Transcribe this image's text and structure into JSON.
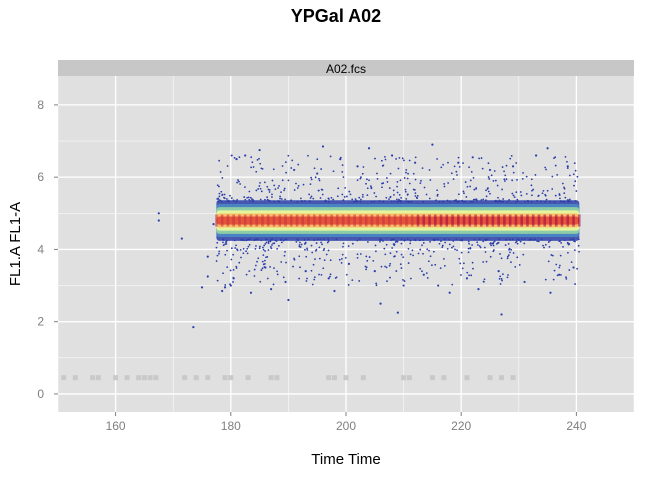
{
  "chart_data": {
    "type": "scatter",
    "title": "YPGal A02",
    "panel_label": "A02.fcs",
    "xlabel": "Time Time",
    "ylabel": "FL1.A FL1-A",
    "xlim": [
      150,
      250
    ],
    "ylim": [
      -0.5,
      8.8
    ],
    "x_ticks": [
      160,
      180,
      200,
      220,
      240
    ],
    "y_ticks": [
      0,
      2,
      4,
      6,
      8
    ],
    "grid": true,
    "density_band": {
      "x_range": [
        177.5,
        240.5
      ],
      "y_center": 4.8,
      "y_halfwidth": 0.45
    },
    "points": [
      [
        167.5,
        5.0
      ],
      [
        167.5,
        4.8
      ],
      [
        171.5,
        4.3
      ],
      [
        173.5,
        1.85
      ],
      [
        175.0,
        2.95
      ],
      [
        176.0,
        3.25
      ],
      [
        176.0,
        3.8
      ],
      [
        177.0,
        4.7
      ],
      [
        178.5,
        2.85
      ],
      [
        179.0,
        2.95
      ],
      [
        180.0,
        3.0
      ],
      [
        180.5,
        3.2
      ],
      [
        181.0,
        6.5
      ],
      [
        182.5,
        6.6
      ],
      [
        183.5,
        2.8
      ],
      [
        185.0,
        6.75
      ],
      [
        186.0,
        3.5
      ],
      [
        187.0,
        2.9
      ],
      [
        189.5,
        3.1
      ],
      [
        190.0,
        2.6
      ],
      [
        191.0,
        6.2
      ],
      [
        193.0,
        3.4
      ],
      [
        195.0,
        6.1
      ],
      [
        196.0,
        6.85
      ],
      [
        197.0,
        3.2
      ],
      [
        198.0,
        2.85
      ],
      [
        199.0,
        6.5
      ],
      [
        200.5,
        3.6
      ],
      [
        202.0,
        6.3
      ],
      [
        204.0,
        6.8
      ],
      [
        205.0,
        3.4
      ],
      [
        206.0,
        2.5
      ],
      [
        208.0,
        6.6
      ],
      [
        209.0,
        2.25
      ],
      [
        210.0,
        3.0
      ],
      [
        212.0,
        6.4
      ],
      [
        213.5,
        3.3
      ],
      [
        215.0,
        6.9
      ],
      [
        216.0,
        3.0
      ],
      [
        218.0,
        2.8
      ],
      [
        219.5,
        6.4
      ],
      [
        221.0,
        3.2
      ],
      [
        222.0,
        6.55
      ],
      [
        223.0,
        2.9
      ],
      [
        225.0,
        6.2
      ],
      [
        226.5,
        3.4
      ],
      [
        227.0,
        2.2
      ],
      [
        229.0,
        6.3
      ],
      [
        231.0,
        3.1
      ],
      [
        233.0,
        6.6
      ],
      [
        235.0,
        6.8
      ],
      [
        235.5,
        2.8
      ],
      [
        237.0,
        3.3
      ],
      [
        238.5,
        6.3
      ],
      [
        239.5,
        3.5
      ]
    ],
    "baseline_points_y": 0.45,
    "baseline_points_x": [
      151,
      153,
      156,
      157,
      160,
      162,
      164,
      165,
      166,
      167,
      172,
      174,
      176,
      179,
      180,
      183,
      187,
      188,
      197,
      198,
      200,
      203,
      210,
      211,
      215,
      217,
      221,
      225,
      227,
      229
    ],
    "colors": {
      "panel_bg": "#e0e0e0",
      "strip_bg": "#c7c7c7",
      "grid": "#ffffff",
      "points": "#2b3ea8"
    }
  }
}
